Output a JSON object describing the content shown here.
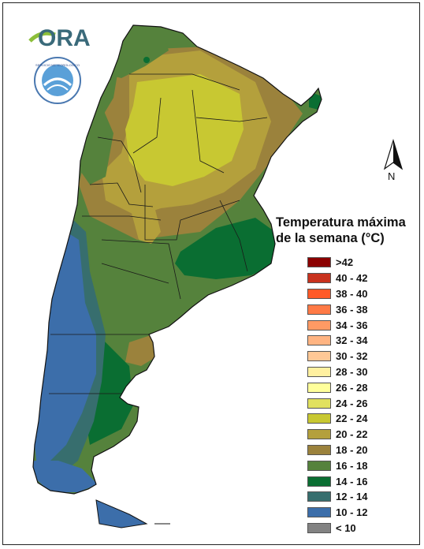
{
  "header": {
    "logo_text": "ORA",
    "seal_text": "SERVICIO METEOROLOGICO NACIONAL ARGENTINA"
  },
  "compass": {
    "label": "N"
  },
  "legend": {
    "title_line1": "Temperatura máxima",
    "title_line2": "de la semana (°C)",
    "items": [
      {
        "label": ">42",
        "color": "#8b0000"
      },
      {
        "label": "40 - 42",
        "color": "#c8321e"
      },
      {
        "label": "38 - 40",
        "color": "#ff5a28"
      },
      {
        "label": "36 - 38",
        "color": "#ff7a46"
      },
      {
        "label": "34 - 36",
        "color": "#ff9a64"
      },
      {
        "label": "32 - 34",
        "color": "#ffb482"
      },
      {
        "label": "30 - 32",
        "color": "#ffc896"
      },
      {
        "label": "28 - 30",
        "color": "#fff0a0"
      },
      {
        "label": "26 - 28",
        "color": "#ffff9b"
      },
      {
        "label": "24 - 26",
        "color": "#e1e15f"
      },
      {
        "label": "22 - 24",
        "color": "#c8c832"
      },
      {
        "label": "20 - 22",
        "color": "#b4a03c"
      },
      {
        "label": "18 - 20",
        "color": "#9b823c"
      },
      {
        "label": "16 - 18",
        "color": "#55823c"
      },
      {
        "label": "14 - 16",
        "color": "#0a6e32"
      },
      {
        "label": "12 - 14",
        "color": "#376e6e"
      },
      {
        "label": "10 - 12",
        "color": "#3c6eaa"
      },
      {
        "label": "< 10",
        "color": "#828282"
      }
    ]
  },
  "map_zones": [
    {
      "name": "north-west-green",
      "value_class": "16 - 18",
      "color": "#55823c"
    },
    {
      "name": "north-central-yellow",
      "value_class": "22 - 24",
      "color": "#c8c832"
    },
    {
      "name": "central-brown",
      "value_class": "18 - 20",
      "color": "#9b823c"
    },
    {
      "name": "center-olive",
      "value_class": "20 - 22",
      "color": "#b4a03c"
    },
    {
      "name": "pampas-green",
      "value_class": "16 - 18",
      "color": "#55823c"
    },
    {
      "name": "atlantic-coast-dark-green",
      "value_class": "14 - 16",
      "color": "#0a6e32"
    },
    {
      "name": "andes-teal",
      "value_class": "12 - 14",
      "color": "#376e6e"
    },
    {
      "name": "south-blue",
      "value_class": "10 - 12",
      "color": "#3c6eaa"
    }
  ]
}
